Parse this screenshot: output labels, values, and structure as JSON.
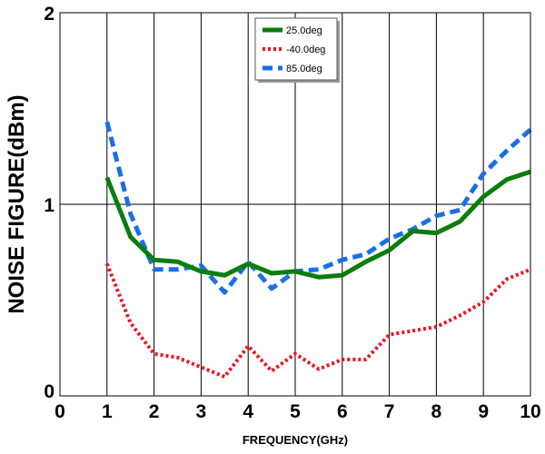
{
  "chart_data": {
    "type": "line",
    "title": "",
    "xlabel": "FREQUENCY(GHz)",
    "ylabel": "NOISE FIGURE(dBm)",
    "xlim": [
      0,
      10
    ],
    "ylim": [
      0,
      2
    ],
    "xticks": [
      "0",
      "1",
      "2",
      "3",
      "4",
      "5",
      "6",
      "7",
      "8",
      "9",
      "10"
    ],
    "yticks": [
      "0",
      "1",
      "2"
    ],
    "grid": true,
    "legend_position": "top-center",
    "x": [
      1,
      1.5,
      2,
      2.5,
      3,
      3.5,
      4,
      4.5,
      5,
      5.5,
      6,
      6.5,
      7,
      7.5,
      8,
      8.5,
      9,
      9.5,
      10
    ],
    "series": [
      {
        "name": "25.0deg",
        "color": "#0a7d0a",
        "style": "solid",
        "values": [
          1.14,
          0.83,
          0.71,
          0.7,
          0.65,
          0.63,
          0.69,
          0.64,
          0.65,
          0.62,
          0.63,
          0.7,
          0.76,
          0.86,
          0.85,
          0.91,
          1.04,
          1.13,
          1.17
        ]
      },
      {
        "name": "-40.0deg",
        "color": "#e8141e",
        "style": "dotted",
        "values": [
          0.69,
          0.38,
          0.22,
          0.2,
          0.15,
          0.1,
          0.26,
          0.13,
          0.22,
          0.14,
          0.19,
          0.19,
          0.32,
          0.34,
          0.36,
          0.42,
          0.49,
          0.61,
          0.66
        ]
      },
      {
        "name": "85.0deg",
        "color": "#1a6fe8",
        "style": "dashed",
        "values": [
          1.43,
          0.95,
          0.66,
          0.66,
          0.68,
          0.54,
          0.7,
          0.56,
          0.65,
          0.66,
          0.71,
          0.74,
          0.82,
          0.87,
          0.94,
          0.97,
          1.16,
          1.28,
          1.39
        ]
      }
    ]
  }
}
